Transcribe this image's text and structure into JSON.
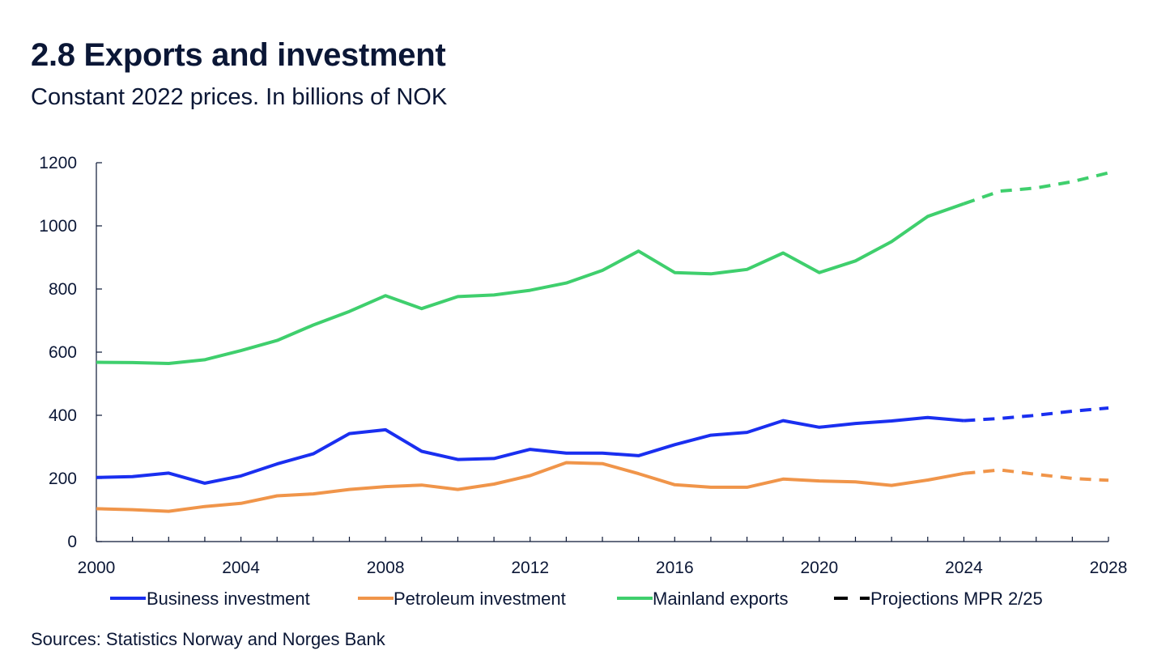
{
  "title": "2.8 Exports and investment",
  "subtitle": "Constant 2022 prices. In billions of NOK",
  "source": "Sources: Statistics Norway and Norges Bank",
  "colors": {
    "text": "#0b1736",
    "axis": "#0b1736",
    "business": "#1a2ff0",
    "petroleum": "#f0954a",
    "mainland": "#3fcf6d",
    "projection_legend": "#000000"
  },
  "chart_data": {
    "type": "line",
    "title": "2.8 Exports and investment",
    "subtitle": "Constant 2022 prices. In billions of NOK",
    "xlabel": "",
    "ylabel": "",
    "xlim": [
      2000,
      2028
    ],
    "ylim": [
      0,
      1200
    ],
    "x_ticks": [
      2000,
      2004,
      2008,
      2012,
      2016,
      2020,
      2024,
      2028
    ],
    "y_ticks": [
      0,
      200,
      400,
      600,
      800,
      1000,
      1200
    ],
    "grid": false,
    "legend_position": "bottom",
    "projection_start": 2024,
    "x": [
      2000,
      2001,
      2002,
      2003,
      2004,
      2005,
      2006,
      2007,
      2008,
      2009,
      2010,
      2011,
      2012,
      2013,
      2014,
      2015,
      2016,
      2017,
      2018,
      2019,
      2020,
      2021,
      2022,
      2023,
      2024,
      2025,
      2026,
      2027,
      2028
    ],
    "series": [
      {
        "name": "Business investment",
        "key": "business",
        "values": [
          203,
          206,
          217,
          185,
          208,
          246,
          278,
          342,
          354,
          286,
          260,
          263,
          292,
          280,
          280,
          272,
          307,
          337,
          346,
          383,
          362,
          374,
          382,
          393,
          383,
          390,
          400,
          413,
          423
        ]
      },
      {
        "name": "Petroleum investment",
        "key": "petroleum",
        "values": [
          104,
          101,
          96,
          111,
          121,
          145,
          151,
          165,
          174,
          179,
          165,
          182,
          209,
          250,
          247,
          215,
          180,
          172,
          172,
          198,
          192,
          189,
          178,
          195,
          216,
          227,
          213,
          200,
          194
        ]
      },
      {
        "name": "Mainland exports",
        "key": "mainland",
        "values": [
          568,
          567,
          564,
          576,
          605,
          637,
          686,
          729,
          779,
          738,
          776,
          781,
          796,
          819,
          859,
          920,
          852,
          848,
          862,
          914,
          852,
          889,
          950,
          1030,
          1070,
          1110,
          1120,
          1140,
          1168
        ]
      }
    ],
    "legend": [
      {
        "label": "Business investment",
        "key": "business",
        "style": "solid"
      },
      {
        "label": "Petroleum investment",
        "key": "petroleum",
        "style": "solid"
      },
      {
        "label": "Mainland exports",
        "key": "mainland",
        "style": "solid"
      },
      {
        "label": "Projections MPR 2/25",
        "key": "projection_legend",
        "style": "dashed"
      }
    ]
  }
}
